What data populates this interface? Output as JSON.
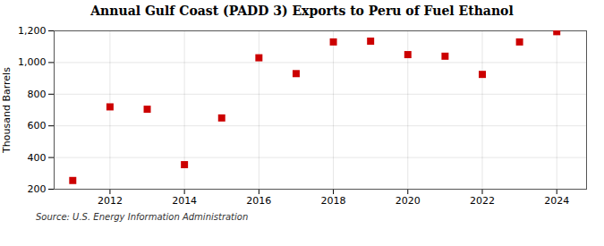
{
  "chart_data": {
    "type": "scatter",
    "title": "Annual Gulf Coast (PADD 3) Exports to Peru of Fuel Ethanol",
    "ylabel": "Thousand Barrels",
    "annotation": "Source: U.S. Energy Information Administration",
    "x": [
      2011,
      2012,
      2013,
      2014,
      2015,
      2016,
      2017,
      2018,
      2019,
      2020,
      2021,
      2022,
      2023,
      2024
    ],
    "values": [
      255,
      720,
      705,
      355,
      650,
      1030,
      930,
      1130,
      1135,
      1050,
      1040,
      925,
      1130,
      1195
    ],
    "color": "#cc0000",
    "marker": "square",
    "xlim": [
      2010.5,
      2024.8
    ],
    "ylim": [
      200,
      1200
    ],
    "xticks": [
      2012,
      2014,
      2016,
      2018,
      2020,
      2022,
      2024
    ],
    "yticks": [
      200,
      400,
      600,
      800,
      {
        "value": 1000,
        "label": "1,000"
      },
      {
        "value": 1200,
        "label": "1,200"
      }
    ],
    "grid": true
  }
}
